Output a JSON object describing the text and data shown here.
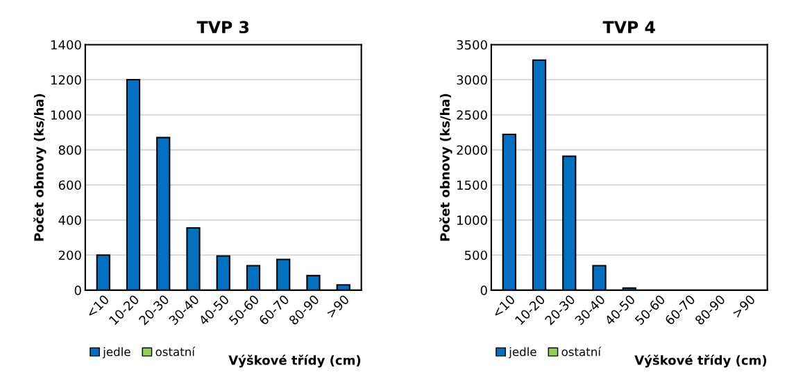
{
  "chart_data": [
    {
      "type": "bar",
      "stacked": true,
      "title": "TVP 3",
      "xlabel": "Výškové třídy (cm)",
      "ylabel": "Počet obnovy (ks/ha)",
      "categories": [
        "<10",
        "10-20",
        "20-30",
        "30-40",
        "40-50",
        "50-60",
        "60-70",
        "80-90",
        ">90"
      ],
      "series": [
        {
          "name": "jedle",
          "color": "#0070c0",
          "values": [
            200,
            1200,
            870,
            355,
            195,
            140,
            175,
            83,
            30
          ]
        },
        {
          "name": "ostatní",
          "color": "#92d050",
          "values": [
            0,
            0,
            0,
            0,
            0,
            0,
            0,
            0,
            0
          ]
        }
      ],
      "ylim": [
        0,
        1400
      ],
      "yticks": [
        0,
        200,
        400,
        600,
        800,
        1000,
        1200,
        1400
      ],
      "grid": "y",
      "legend": "bottom left"
    },
    {
      "type": "bar",
      "stacked": true,
      "title": "TVP 4",
      "xlabel": "Výškové třídy (cm)",
      "ylabel": "Počet obnovy (ks/ha)",
      "categories": [
        "<10",
        "10-20",
        "20-30",
        "30-40",
        "40-50",
        "50-60",
        "60-70",
        "80-90",
        ">90"
      ],
      "series": [
        {
          "name": "jedle",
          "color": "#0070c0",
          "values": [
            2220,
            3280,
            1910,
            350,
            30,
            0,
            0,
            0,
            0
          ]
        },
        {
          "name": "ostatní",
          "color": "#92d050",
          "values": [
            0,
            0,
            0,
            0,
            0,
            0,
            0,
            0,
            0
          ]
        }
      ],
      "ylim": [
        0,
        3500
      ],
      "yticks": [
        0,
        500,
        1000,
        1500,
        2000,
        2500,
        3000,
        3500
      ],
      "grid": "y",
      "legend": "bottom left"
    }
  ]
}
